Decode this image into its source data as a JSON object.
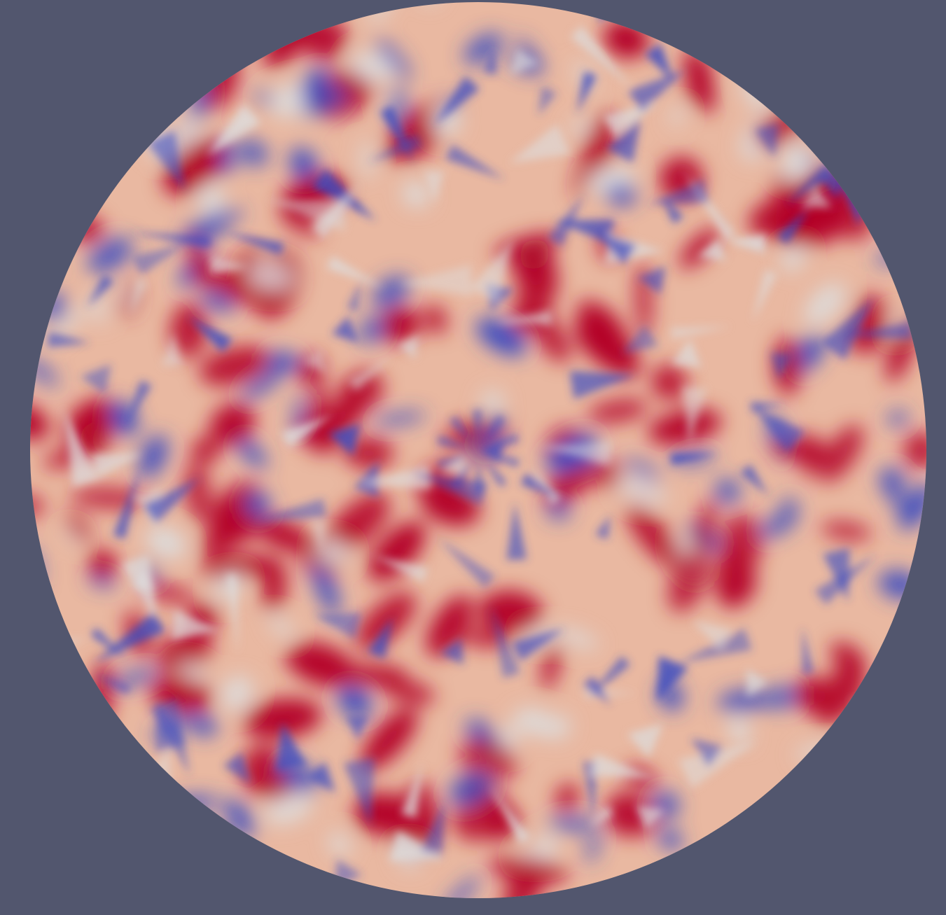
{
  "viewport": {
    "background_color": "#52566e"
  },
  "colormap": {
    "name": "cool-to-warm",
    "low": "#3b4cc0",
    "mid": "#dddcdc",
    "high": "#b40426",
    "base_fill": "#e9b8a1"
  },
  "field": {
    "shape": "disk",
    "pattern": "interference-field-on-triangulated-mesh"
  }
}
